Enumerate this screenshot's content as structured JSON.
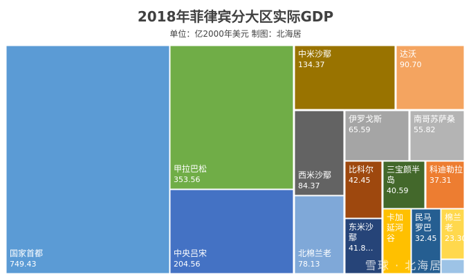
{
  "title": "2018年菲律宾分大区实际GDP",
  "subtitle": "单位：亿2000年美元  制图：北海居",
  "watermark": "雪球 · 北海居",
  "chart_data": {
    "type": "treemap",
    "title": "2018年菲律宾分大区实际GDP",
    "unit": "亿2000年美元",
    "series": [
      {
        "name": "国家首都",
        "value": 749.43,
        "value_label": "749.43",
        "color": "#5b9bd5"
      },
      {
        "name": "甲拉巴松",
        "value": 353.56,
        "value_label": "353.56",
        "color": "#70ad47"
      },
      {
        "name": "中央吕宋",
        "value": 204.56,
        "value_label": "204.56",
        "color": "#4472c4"
      },
      {
        "name": "中米沙鄢",
        "value": 134.37,
        "value_label": "134.37",
        "color": "#997300"
      },
      {
        "name": "达沃",
        "value": 90.7,
        "value_label": "90.70",
        "color": "#f4a460"
      },
      {
        "name": "西米沙鄢",
        "value": 84.37,
        "value_label": "84.37",
        "color": "#636363"
      },
      {
        "name": "北棉兰老",
        "value": 78.13,
        "value_label": "78.13",
        "color": "#7fa8d8"
      },
      {
        "name": "伊罗戈斯",
        "value": 65.59,
        "value_label": "65.59",
        "color": "#a5a5a5"
      },
      {
        "name": "南哥苏萨桑",
        "value": 55.82,
        "value_label": "55.82",
        "color": "#b4b4b4"
      },
      {
        "name": "比科尔",
        "value": 42.45,
        "value_label": "42.45",
        "color": "#9e480e"
      },
      {
        "name": "东米沙鄢",
        "value": 41.8,
        "value_label": "41.8…",
        "color": "#264478"
      },
      {
        "name": "三宝颜半岛",
        "value": 40.59,
        "value_label": "40.59",
        "color": "#43682b"
      },
      {
        "name": "科迪勒拉",
        "value": 37.31,
        "value_label": "37.31",
        "color": "#ed7d31"
      },
      {
        "name": "卡加延河谷",
        "value": null,
        "value_label": "",
        "color": "#ffc000"
      },
      {
        "name": "民马罗巴",
        "value": 32.45,
        "value_label": "32.45",
        "color": "#255e91"
      },
      {
        "name": "棉兰老",
        "value": 23.3,
        "value_label": "23.30",
        "color": "#ffd84d"
      }
    ]
  }
}
